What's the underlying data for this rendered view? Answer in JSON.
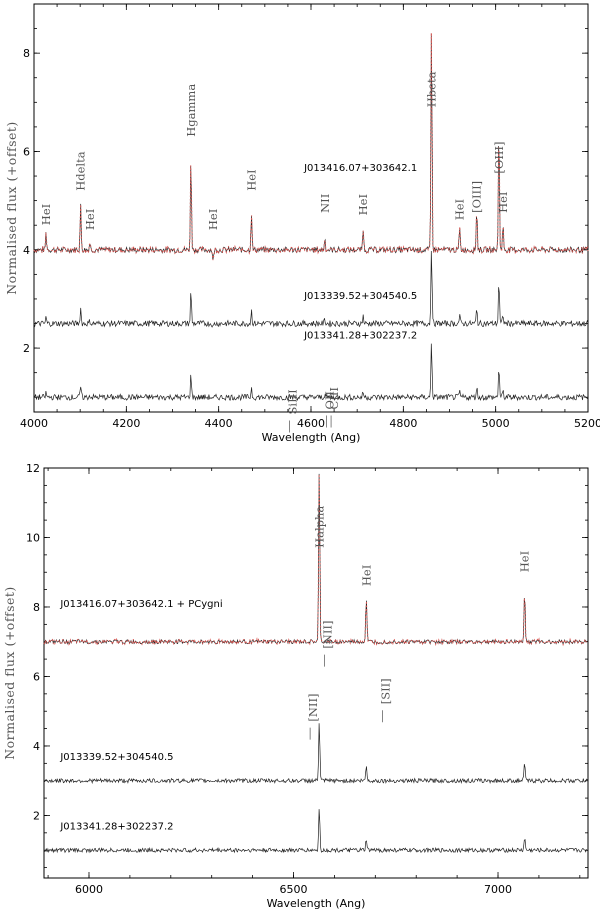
{
  "chart_data": [
    {
      "type": "line",
      "xlabel": "Wavelength (Ang)",
      "ylabel": "Normalised flux (+offset)",
      "xlim": [
        4000,
        5200
      ],
      "ylim": [
        0.7,
        9.0
      ],
      "xticks": [
        4000,
        4200,
        4400,
        4600,
        4800,
        5000,
        5200
      ],
      "yticks": [
        2,
        4,
        6,
        8
      ],
      "series": [
        {
          "name": "J013416.07+303642.1",
          "offset": 4.0,
          "label_at": [
            4585,
            5.6
          ]
        },
        {
          "name": "J013339.52+304540.5",
          "offset": 2.5,
          "label_at": [
            4585,
            3.0
          ]
        },
        {
          "name": "J013341.28+302237.2",
          "offset": 1.0,
          "label_at": [
            4585,
            2.2
          ]
        }
      ],
      "lines": [
        {
          "label": "HeI",
          "x": 4026,
          "h": 0.35,
          "text_y": 4.5
        },
        {
          "label": "Hdelta",
          "x": 4101,
          "h": 0.9,
          "text_y": 5.2
        },
        {
          "label": "HeI",
          "x": 4121,
          "h": 0.15,
          "text_y": 4.4
        },
        {
          "label": "Hgamma",
          "x": 4340,
          "h": 1.9,
          "text_y": 6.3
        },
        {
          "label": "HeI",
          "x": 4388,
          "h": -0.25,
          "text_y": 4.4
        },
        {
          "label": "HeI",
          "x": 4471,
          "h": 0.8,
          "text_y": 5.2
        },
        {
          "label": "NII",
          "x": 4630,
          "h": 0.25,
          "text_y": 4.75
        },
        {
          "label": "HeI",
          "x": 4713,
          "h": 0.45,
          "text_y": 4.7
        },
        {
          "label": "Hbeta",
          "x": 4861,
          "h": 4.7,
          "text_y": 6.9
        },
        {
          "label": "HeI",
          "x": 4922,
          "h": 0.45,
          "text_y": 4.6
        },
        {
          "label": "[OIII]",
          "x": 4959,
          "h": 0.85,
          "text_y": 4.75
        },
        {
          "label": "[OIII]",
          "x": 5007,
          "h": 2.6,
          "text_y": 5.55
        },
        {
          "label": "HeI",
          "x": 5016,
          "h": 0.5,
          "text_y": 4.75
        }
      ],
      "lower_labels": [
        {
          "label": "SiIII",
          "x": 4560,
          "text_y": 0.65
        },
        {
          "label": "OII",
          "x": 4640,
          "text_y": 0.75
        },
        {
          "label": "CIII",
          "x": 4650,
          "text_y": 0.75
        }
      ]
    },
    {
      "type": "line",
      "xlabel": "Wavelength (Ang)",
      "ylabel": "Normalised flux (+offset)",
      "xlim": [
        5890,
        7220
      ],
      "ylim": [
        0.2,
        12.0
      ],
      "xticks": [
        6000,
        6500,
        7000
      ],
      "yticks": [
        2,
        4,
        6,
        8,
        10,
        12
      ],
      "series": [
        {
          "name": "J013416.07+303642.1 + PCygni",
          "offset": 7.0,
          "label_at": [
            5930,
            8.0
          ]
        },
        {
          "name": "J013339.52+304540.5",
          "offset": 3.0,
          "label_at": [
            5930,
            3.6
          ]
        },
        {
          "name": "J013341.28+302237.2",
          "offset": 1.0,
          "label_at": [
            5930,
            1.6
          ]
        }
      ],
      "lines": [
        {
          "label": "Halpha",
          "x": 6563,
          "h": 5.0,
          "text_y": 9.7
        },
        {
          "label": "HeI",
          "x": 6678,
          "h": 1.3,
          "text_y": 8.6
        },
        {
          "label": "HeI",
          "x": 7065,
          "h": 1.5,
          "text_y": 9.0
        }
      ],
      "lower_labels": [
        {
          "label": "[NII]",
          "x": 6548,
          "text_y": 4.7
        },
        {
          "label": "[NII]",
          "x": 6583,
          "text_y": 6.8
        },
        {
          "label": "[SII]",
          "x": 6725,
          "text_y": 5.2
        }
      ]
    }
  ]
}
